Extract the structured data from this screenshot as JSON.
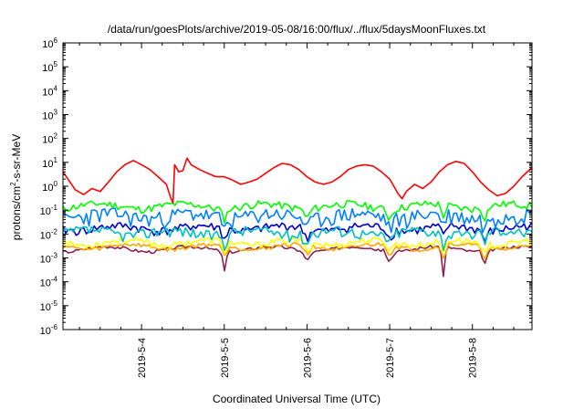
{
  "chart_data": {
    "type": "line",
    "title": "/data/run/goesPlots/archive/2019-05-08/16:00/flux/../flux/5daysMoonFluxes.txt",
    "xlabel": "Coordinated Universal Time (UTC)",
    "ylabel": "protons/cm2-s-sr-MeV",
    "ylabel_parts": {
      "pre": "protons/cm",
      "sup": "2",
      "post": "-s-sr-MeV"
    },
    "y_scale": "log",
    "ylim": [
      1e-06,
      1000000.0
    ],
    "xlim_days": [
      3.05,
      8.72
    ],
    "y_ticks": [
      {
        "exp": -6,
        "base": "10",
        "sup": "-6"
      },
      {
        "exp": -5,
        "base": "10",
        "sup": "-5"
      },
      {
        "exp": -4,
        "base": "10",
        "sup": "-4"
      },
      {
        "exp": -3,
        "base": "10",
        "sup": "-3"
      },
      {
        "exp": -2,
        "base": "10",
        "sup": "-2"
      },
      {
        "exp": -1,
        "base": "10",
        "sup": "-1"
      },
      {
        "exp": 0,
        "base": "10",
        "sup": "0"
      },
      {
        "exp": 1,
        "base": "10",
        "sup": "1"
      },
      {
        "exp": 2,
        "base": "10",
        "sup": "2"
      },
      {
        "exp": 3,
        "base": "10",
        "sup": "3"
      },
      {
        "exp": 4,
        "base": "10",
        "sup": "4"
      },
      {
        "exp": 5,
        "base": "10",
        "sup": "5"
      },
      {
        "exp": 6,
        "base": "10",
        "sup": "6"
      }
    ],
    "x_ticks": [
      {
        "day": 4,
        "label": "2019-5-4"
      },
      {
        "day": 5,
        "label": "2019-5-5"
      },
      {
        "day": 6,
        "label": "2019-5-6"
      },
      {
        "day": 7,
        "label": "2019-5-7"
      },
      {
        "day": 8,
        "label": "2019-5-8"
      }
    ],
    "grid": false,
    "series": [
      {
        "color": "#ff0000",
        "points": [
          [
            3.05,
            4
          ],
          [
            3.12,
            1.8
          ],
          [
            3.2,
            0.7
          ],
          [
            3.3,
            0.45
          ],
          [
            3.4,
            0.8
          ],
          [
            3.5,
            0.6
          ],
          [
            3.6,
            1.5
          ],
          [
            3.7,
            4
          ],
          [
            3.8,
            8
          ],
          [
            3.9,
            12
          ],
          [
            4.0,
            8
          ],
          [
            4.1,
            5
          ],
          [
            4.2,
            2.5
          ],
          [
            4.3,
            1.2
          ],
          [
            4.35,
            0.35
          ],
          [
            4.38,
            0.2
          ],
          [
            4.4,
            8
          ],
          [
            4.45,
            4
          ],
          [
            4.5,
            4.5
          ],
          [
            4.55,
            15
          ],
          [
            4.6,
            8
          ],
          [
            4.7,
            5
          ],
          [
            4.8,
            3.5
          ],
          [
            4.9,
            2.5
          ],
          [
            5.0,
            2.5
          ],
          [
            5.1,
            1.8
          ],
          [
            5.2,
            1.2
          ],
          [
            5.3,
            1.5
          ],
          [
            5.4,
            2
          ],
          [
            5.5,
            3.5
          ],
          [
            5.6,
            6
          ],
          [
            5.7,
            9
          ],
          [
            5.8,
            8
          ],
          [
            5.9,
            5
          ],
          [
            6.0,
            2.5
          ],
          [
            6.1,
            1.5
          ],
          [
            6.2,
            1.2
          ],
          [
            6.3,
            1.5
          ],
          [
            6.4,
            2.5
          ],
          [
            6.5,
            5
          ],
          [
            6.6,
            7
          ],
          [
            6.7,
            8
          ],
          [
            6.8,
            7
          ],
          [
            6.9,
            4
          ],
          [
            7.0,
            2
          ],
          [
            7.1,
            0.5
          ],
          [
            7.15,
            0.3
          ],
          [
            7.2,
            0.6
          ],
          [
            7.3,
            1.2
          ],
          [
            7.4,
            0.8
          ],
          [
            7.5,
            1.5
          ],
          [
            7.6,
            4
          ],
          [
            7.7,
            8
          ],
          [
            7.8,
            11
          ],
          [
            7.9,
            9
          ],
          [
            8.0,
            4
          ],
          [
            8.1,
            1.5
          ],
          [
            8.2,
            0.7
          ],
          [
            8.3,
            0.4
          ],
          [
            8.4,
            0.5
          ],
          [
            8.5,
            1.0
          ],
          [
            8.6,
            2.5
          ],
          [
            8.72,
            6
          ]
        ]
      },
      {
        "color": "#00ff00",
        "base": 0.15,
        "amp": 1.35,
        "seed": 11
      },
      {
        "color": "#0080ff",
        "base": 0.06,
        "amp": 1.7,
        "seed": 23
      },
      {
        "color": "#00c0c0",
        "base": 0.012,
        "amp": 1.5,
        "seed": 37
      },
      {
        "color": "#0000cc",
        "base": 0.018,
        "amp": 1.4,
        "seed": 41
      },
      {
        "color": "#ffff00",
        "base": 0.0045,
        "amp": 1.3,
        "seed": 53
      },
      {
        "color": "#ffa500",
        "base": 0.003,
        "amp": 1.2,
        "seed": 59
      },
      {
        "color": "#8b2252",
        "base": 0.0024,
        "amp": 1.15,
        "seed": 67
      }
    ]
  }
}
